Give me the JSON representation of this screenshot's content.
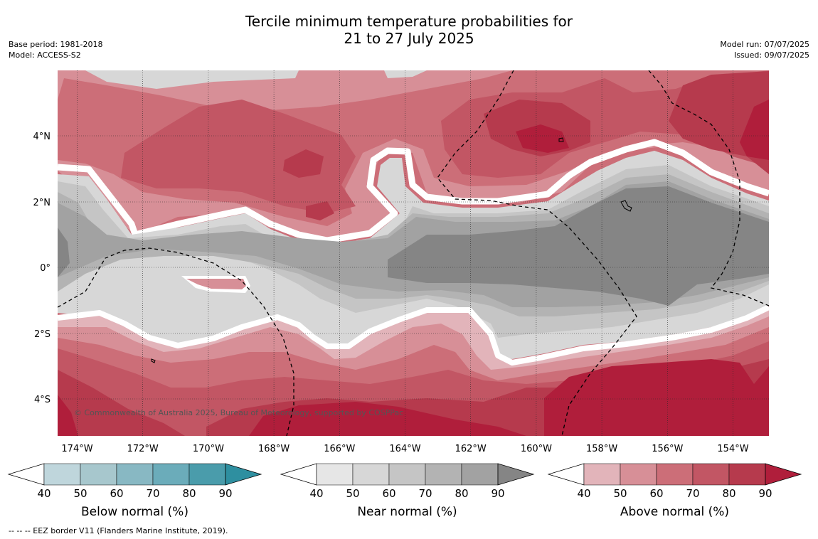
{
  "title": {
    "line1": "Tercile minimum temperature probabilities for",
    "line2": "21 to 27 July 2025"
  },
  "meta_left": {
    "base_period": "Base period: 1981-2018",
    "model": "Model: ACCESS-S2"
  },
  "meta_right": {
    "model_run": "Model run: 07/07/2025",
    "issued": "Issued: 09/07/2025"
  },
  "map": {
    "lon_ticks": [
      "174°W",
      "172°W",
      "170°W",
      "168°W",
      "166°W",
      "164°W",
      "162°W",
      "160°W",
      "158°W",
      "156°W",
      "154°W"
    ],
    "lat_ticks": [
      "4°N",
      "2°N",
      "0°",
      "2°S",
      "4°S"
    ],
    "copyright": "© Commonwealth of Australia 2025, Bureau of Meteorology, supported by COSPPac"
  },
  "colorbars": [
    {
      "label": "Below normal (%)",
      "ticks": [
        "40",
        "50",
        "60",
        "70",
        "80",
        "90"
      ],
      "colors": [
        "#bfd6dc",
        "#a7c7cd",
        "#88b8c3",
        "#6bacba",
        "#4a9cab",
        "#2e8fa0"
      ]
    },
    {
      "label": "Near normal (%)",
      "ticks": [
        "40",
        "50",
        "60",
        "70",
        "80",
        "90"
      ],
      "colors": [
        "#e6e6e6",
        "#d7d7d7",
        "#c5c5c5",
        "#b3b3b3",
        "#a2a2a2",
        "#858585"
      ]
    },
    {
      "label": "Above normal (%)",
      "ticks": [
        "40",
        "50",
        "60",
        "70",
        "80",
        "90"
      ],
      "colors": [
        "#e2b4ba",
        "#d78f97",
        "#cc6e78",
        "#c25664",
        "#b63a4d",
        "#b01e3b"
      ]
    }
  ],
  "legend_note": "-- -- -- EEZ border V11 (Flanders Marine Institute, 2019)."
}
